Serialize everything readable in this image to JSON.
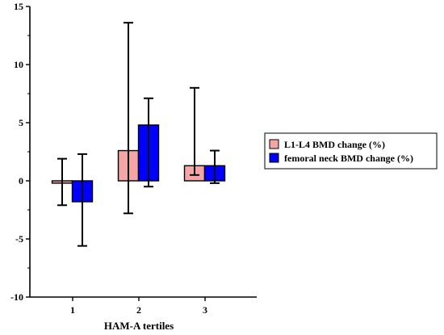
{
  "chart_data": {
    "type": "bar",
    "title": "",
    "xlabel": "HAM-A tertiles",
    "ylabel": "",
    "categories": [
      "1",
      "2",
      "3"
    ],
    "ylim": [
      -10,
      15
    ],
    "yticks": [
      "-10",
      "-5",
      "0",
      "5",
      "10",
      "15"
    ],
    "grid": false,
    "legend_position": "right",
    "series": [
      {
        "name": "L1-L4 BMD change (%)",
        "color": "#f4a6a6",
        "values": [
          -0.2,
          2.6,
          1.3
        ],
        "error_low": [
          -2.1,
          -2.8,
          0.5
        ],
        "error_high": [
          1.9,
          13.6,
          8.0
        ]
      },
      {
        "name": "femoral neck BMD change (%)",
        "color": "#0000ff",
        "values": [
          -1.8,
          4.8,
          1.3
        ],
        "error_low": [
          -5.6,
          -0.5,
          -0.2
        ],
        "error_high": [
          2.3,
          7.1,
          2.6
        ]
      }
    ]
  }
}
